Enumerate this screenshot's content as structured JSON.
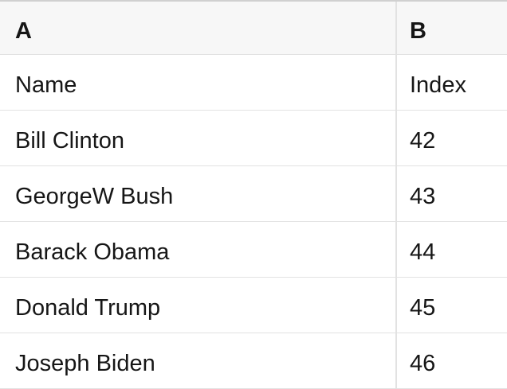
{
  "table": {
    "column_headers": {
      "a": "A",
      "b": "B"
    },
    "rows": [
      {
        "a": "Name",
        "b": "Index"
      },
      {
        "a": "Bill Clinton",
        "b": "42"
      },
      {
        "a": "GeorgeW Bush",
        "b": "43"
      },
      {
        "a": "Barack Obama",
        "b": "44"
      },
      {
        "a": "Donald Trump",
        "b": "45"
      },
      {
        "a": "Joseph Biden",
        "b": "46"
      }
    ],
    "colors": {
      "header_background": "#f7f7f7",
      "cell_background": "#ffffff",
      "grid_line": "#e2e2e2",
      "top_border": "#d0d0d0",
      "text": "#161616"
    }
  }
}
